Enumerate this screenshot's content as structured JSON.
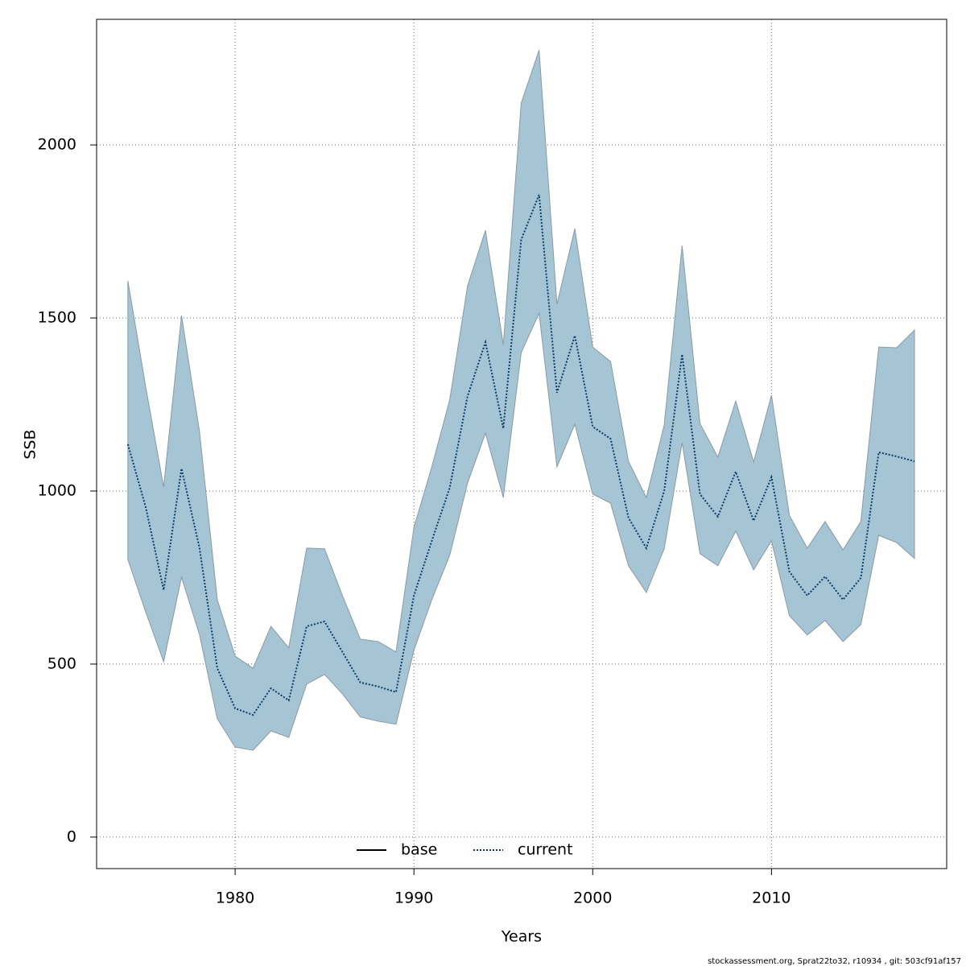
{
  "chart_data": {
    "type": "line",
    "x_label": "Years",
    "y_label": "SSB",
    "footer": "stockassessment.org, Sprat22to32, r10934 , git: 503cf91af157",
    "x": [
      1974,
      1975,
      1976,
      1977,
      1978,
      1979,
      1980,
      1981,
      1982,
      1983,
      1984,
      1985,
      1986,
      1987,
      1988,
      1989,
      1990,
      1991,
      1992,
      1993,
      1994,
      1995,
      1996,
      1997,
      1998,
      1999,
      2000,
      2001,
      2002,
      2003,
      2004,
      2005,
      2006,
      2007,
      2008,
      2009,
      2010,
      2011,
      2012,
      2013,
      2014,
      2015,
      2016,
      2017,
      2018
    ],
    "series": [
      {
        "name": "base",
        "color": "#000000",
        "linestyle": "solid"
      },
      {
        "name": "current",
        "color": "#0b3d66",
        "linestyle": "dotted",
        "band_color": "#a5c4d4",
        "values": [
          1135,
          953,
          714,
          1065,
          837,
          488,
          372,
          353,
          430,
          395,
          609,
          623,
          535,
          447,
          435,
          419,
          698,
          856,
          1009,
          1274,
          1430,
          1181,
          1726,
          1856,
          1284,
          1449,
          1186,
          1151,
          923,
          835,
          1000,
          1395,
          991,
          926,
          1056,
          914,
          1040,
          767,
          698,
          753,
          686,
          749,
          1112,
          1100,
          1086
        ],
        "upper": [
          1607,
          1300,
          1012,
          1507,
          1174,
          686,
          523,
          488,
          609,
          547,
          835,
          833,
          698,
          572,
          565,
          535,
          895,
          1070,
          1263,
          1593,
          1753,
          1423,
          2121,
          2274,
          1540,
          1758,
          1416,
          1374,
          1086,
          981,
          1191,
          1709,
          1195,
          1098,
          1260,
          1084,
          1277,
          930,
          835,
          912,
          830,
          912,
          1416,
          1414,
          1465
        ],
        "lower": [
          802,
          650,
          507,
          751,
          586,
          342,
          260,
          251,
          307,
          288,
          442,
          470,
          414,
          347,
          335,
          326,
          540,
          686,
          814,
          1023,
          1167,
          981,
          1400,
          1514,
          1070,
          1193,
          991,
          965,
          784,
          707,
          833,
          1140,
          819,
          784,
          884,
          772,
          856,
          640,
          584,
          626,
          565,
          614,
          872,
          851,
          805
        ]
      }
    ],
    "xlim": [
      1972.25,
      2019.8
    ],
    "ylim": [
      -91,
      2363
    ],
    "xticks": [
      1980,
      1990,
      2000,
      2010
    ],
    "yticks": [
      0,
      500,
      1000,
      1500,
      2000
    ],
    "grid": true,
    "legend": "bottom"
  }
}
